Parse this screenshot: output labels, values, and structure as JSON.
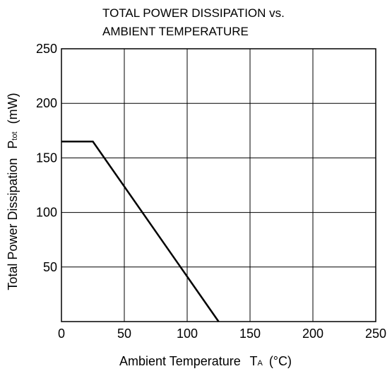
{
  "chart_data": {
    "type": "line",
    "title_lines": [
      "TOTAL POWER DISSIPATION vs.",
      "AMBIENT TEMPERATURE"
    ],
    "xlabel": {
      "text": "Ambient Temperature",
      "symbol": "T",
      "subscript": "A",
      "unit": "(°C)"
    },
    "ylabel": {
      "text": "Total Power Dissipation",
      "symbol": "P",
      "subscript": "tot",
      "unit": "(mW)"
    },
    "xlim": [
      0,
      250
    ],
    "ylim": [
      0,
      250
    ],
    "x_ticks": [
      0,
      50,
      100,
      150,
      200,
      250
    ],
    "y_ticks": [
      50,
      100,
      150,
      200,
      250
    ],
    "grid": true,
    "series": [
      {
        "x": [
          0,
          25,
          125
        ],
        "y": [
          165,
          165,
          0
        ]
      }
    ],
    "line_color": "#000000",
    "grid_color": "#000000"
  }
}
